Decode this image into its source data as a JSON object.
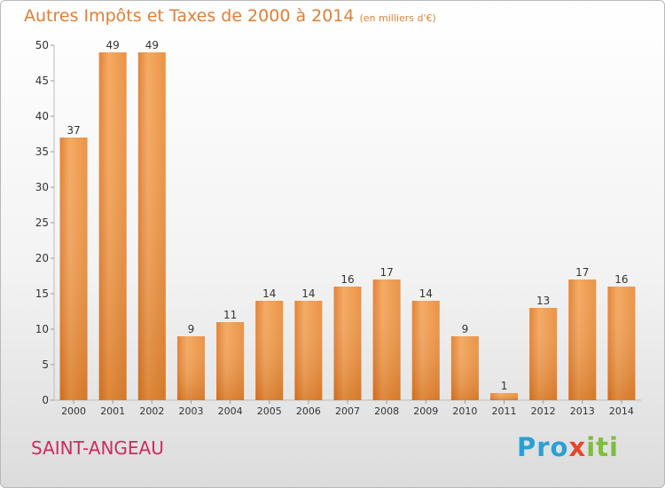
{
  "chart_data": {
    "type": "bar",
    "title": "Autres Impôts et Taxes de 2000 à 2014",
    "unit_label": "(en milliers d'€)",
    "categories": [
      "2000",
      "2001",
      "2002",
      "2003",
      "2004",
      "2005",
      "2006",
      "2007",
      "2008",
      "2009",
      "2010",
      "2011",
      "2012",
      "2013",
      "2014"
    ],
    "values": [
      37,
      49,
      49,
      9,
      11,
      14,
      14,
      16,
      17,
      14,
      9,
      1,
      13,
      17,
      16
    ],
    "yticks": [
      0,
      5,
      10,
      15,
      20,
      25,
      30,
      35,
      40,
      45,
      50
    ],
    "ylim": [
      0,
      50
    ],
    "xlabel": "",
    "ylabel": "",
    "bar_color": "#f0933a",
    "grid": false
  },
  "commune_name": "SAINT-ANGEAU",
  "brand": {
    "p": "Pro",
    "x": "x",
    "iti": "iti"
  }
}
